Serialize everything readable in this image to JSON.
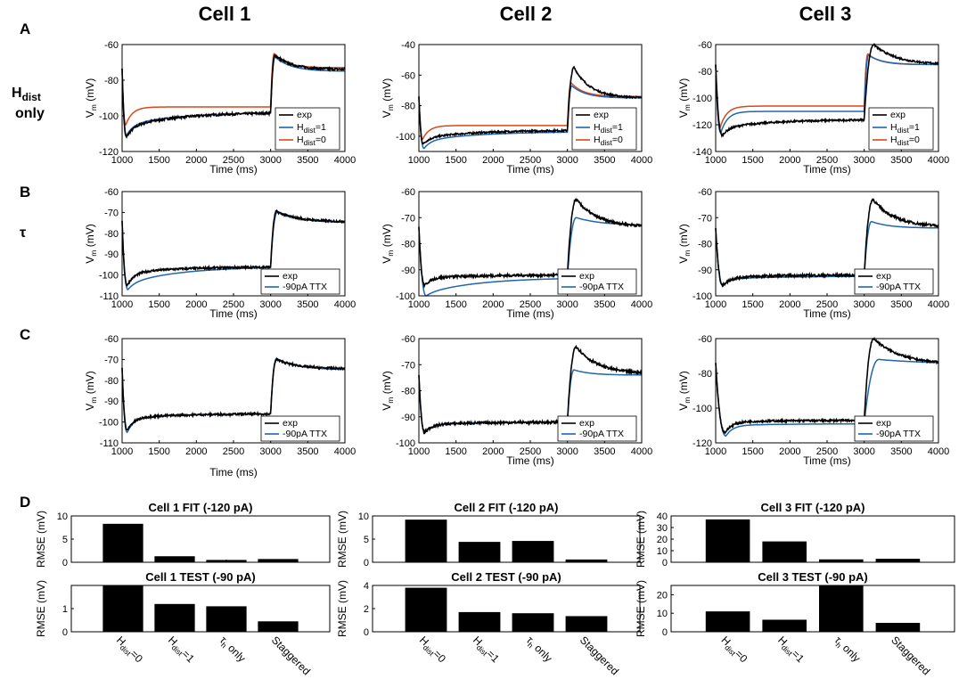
{
  "figure": {
    "column_titles": [
      "Cell 1",
      "Cell 2",
      "Cell 3"
    ],
    "panel_letters": [
      "A",
      "B",
      "C",
      "D"
    ],
    "row_labels": {
      "hdist_main": "H",
      "hdist_sub": "dist",
      "hdist_line2": "only",
      "tau": "τ"
    },
    "xlabel": "Time (ms)",
    "ylabel_main": "V",
    "ylabel_sub": "m",
    "ylabel_unit": " (mV)",
    "legend": {
      "exp": "exp",
      "h1_main": "H",
      "h1_sub": "dist",
      "h1_tail": "=1",
      "h0_main": "H",
      "h0_sub": "dist",
      "h0_tail": "=0",
      "ttx": "-90pA TTX"
    },
    "bar_ylabel": "RMSE (mV)",
    "bar_categories": [
      {
        "main": "H",
        "sub": "dist",
        "tail": "=0"
      },
      {
        "main": "H",
        "sub": "dist",
        "tail": "=1"
      },
      {
        "main": "τ",
        "sub": "h",
        "tail": " only"
      },
      {
        "main": "Staggered",
        "sub": "",
        "tail": ""
      }
    ],
    "colors": {
      "exp": "#000000",
      "model1": "#1f66b1",
      "model0": "#d9481a"
    }
  },
  "chart_data": [
    {
      "type": "line",
      "panel": "A",
      "cell": "Cell 1",
      "xlim": [
        1000,
        4000
      ],
      "ylim": [
        -120,
        -60
      ],
      "yticks": [
        -120,
        -100,
        -80,
        -60
      ],
      "xticks": [
        1000,
        1500,
        2000,
        2500,
        3000,
        3500,
        4000
      ],
      "xlabel": "Time (ms)",
      "ylabel": "Vm (mV)",
      "traces": [
        {
          "name": "exp",
          "v0": -73.5,
          "vmin": -112,
          "tmin": 1060,
          "vss": -98,
          "droop": 8,
          "noise": 0.8,
          "post": -74,
          "peak": -66,
          "peak_t": 3060,
          "rebound": 6
        },
        {
          "name": "Hdist=1",
          "v0": -73.5,
          "vmin": -111,
          "tmin": 1060,
          "vss": -98,
          "droop": 7,
          "noise": 0,
          "post": -75,
          "peak": -67,
          "peak_t": 3060,
          "rebound": 6
        },
        {
          "name": "Hdist=0",
          "v0": -73.5,
          "vmin": -105,
          "tmin": 1050,
          "vss": -95,
          "droop": 0,
          "noise": 0,
          "post": -73,
          "peak": -65,
          "peak_t": 3050,
          "rebound": 5
        }
      ]
    },
    {
      "type": "line",
      "panel": "A",
      "cell": "Cell 2",
      "xlim": [
        1000,
        4000
      ],
      "ylim": [
        -110,
        -40
      ],
      "yticks": [
        -100,
        -80,
        -60,
        -40
      ],
      "xticks": [
        1000,
        1500,
        2000,
        2500,
        3000,
        3500,
        4000
      ],
      "xlabel": "Time (ms)",
      "ylabel": "Vm (mV)",
      "traces": [
        {
          "name": "exp",
          "v0": -74,
          "vmin": -105,
          "tmin": 1060,
          "vss": -96,
          "droop": 5,
          "noise": 0.7,
          "post": -75,
          "peak": -55,
          "peak_t": 3090,
          "rebound": 4
        },
        {
          "name": "Hdist=1",
          "v0": -74,
          "vmin": -108,
          "tmin": 1070,
          "vss": -97,
          "droop": 6,
          "noise": 0,
          "post": -75,
          "peak": -67,
          "peak_t": 3060,
          "rebound": 5
        },
        {
          "name": "Hdist=0",
          "v0": -74,
          "vmin": -102,
          "tmin": 1050,
          "vss": -93,
          "droop": 0,
          "noise": 0,
          "post": -74,
          "peak": -65,
          "peak_t": 3050,
          "rebound": 5
        }
      ]
    },
    {
      "type": "line",
      "panel": "A",
      "cell": "Cell 3",
      "xlim": [
        1000,
        4000
      ],
      "ylim": [
        -140,
        -60
      ],
      "yticks": [
        -140,
        -120,
        -100,
        -80,
        -60
      ],
      "xticks": [
        1000,
        1500,
        2000,
        2500,
        3000,
        3500,
        4000
      ],
      "xlabel": "Time (ms)",
      "ylabel": "Vm (mV)",
      "traces": [
        {
          "name": "exp",
          "v0": -75,
          "vmin": -128,
          "tmin": 1090,
          "vss": -116,
          "droop": 6,
          "noise": 0.8,
          "post": -75,
          "peak": -60,
          "peak_t": 3130,
          "rebound": 4
        },
        {
          "name": "Hdist=1",
          "v0": -75,
          "vmin": -126,
          "tmin": 1070,
          "vss": -110,
          "droop": 0,
          "noise": 0,
          "post": -75,
          "peak": -68,
          "peak_t": 3060,
          "rebound": 5
        },
        {
          "name": "Hdist=0",
          "v0": -75,
          "vmin": -122,
          "tmin": 1060,
          "vss": -106,
          "droop": 0,
          "noise": 0,
          "post": -75,
          "peak": -67,
          "peak_t": 3050,
          "rebound": 5
        }
      ]
    },
    {
      "type": "line",
      "panel": "B",
      "cell": "Cell 1",
      "xlim": [
        1000,
        4000
      ],
      "ylim": [
        -110,
        -60
      ],
      "yticks": [
        -110,
        -100,
        -90,
        -80,
        -70,
        -60
      ],
      "xticks": [
        1000,
        1500,
        2000,
        2500,
        3000,
        3500,
        4000
      ],
      "xlabel": "Time (ms)",
      "ylabel": "Vm (mV)",
      "traces": [
        {
          "name": "exp",
          "v0": -74,
          "vmin": -105,
          "tmin": 1070,
          "vss": -96,
          "droop": 3,
          "noise": 0.6,
          "post": -74.5,
          "peak": -69.5,
          "peak_t": 3080,
          "rebound": 6
        },
        {
          "name": "-90pA TTX",
          "v0": -74,
          "vmin": -107,
          "tmin": 1080,
          "vss": -96,
          "droop": 8,
          "noise": 0,
          "post": -75,
          "peak": -70,
          "peak_t": 3090,
          "rebound": 6
        }
      ]
    },
    {
      "type": "line",
      "panel": "B",
      "cell": "Cell 2",
      "xlim": [
        1000,
        4000
      ],
      "ylim": [
        -100,
        -60
      ],
      "yticks": [
        -100,
        -90,
        -80,
        -70,
        -60
      ],
      "xticks": [
        1000,
        1500,
        2000,
        2500,
        3000,
        3500,
        4000
      ],
      "xlabel": "Time (ms)",
      "ylabel": "Vm (mV)",
      "traces": [
        {
          "name": "exp",
          "v0": -73.5,
          "vmin": -96,
          "tmin": 1080,
          "vss": -92,
          "droop": 1,
          "noise": 0.6,
          "post": -73.5,
          "peak": -63,
          "peak_t": 3120,
          "rebound": 4
        },
        {
          "name": "-90pA TTX",
          "v0": -73.5,
          "vmin": -100,
          "tmin": 1100,
          "vss": -93,
          "droop": 6,
          "noise": 0,
          "post": -73,
          "peak": -70,
          "peak_t": 3120,
          "rebound": 5
        }
      ]
    },
    {
      "type": "line",
      "panel": "B",
      "cell": "Cell 3",
      "xlim": [
        1000,
        4000
      ],
      "ylim": [
        -100,
        -60
      ],
      "yticks": [
        -100,
        -90,
        -80,
        -70,
        -60
      ],
      "xticks": [
        1000,
        1500,
        2000,
        2500,
        3000,
        3500,
        4000
      ],
      "xlabel": "Time (ms)",
      "ylabel": "Vm (mV)",
      "traces": [
        {
          "name": "exp",
          "v0": -74,
          "vmin": -96,
          "tmin": 1100,
          "vss": -92,
          "droop": 1,
          "noise": 0.6,
          "post": -73.5,
          "peak": -63,
          "peak_t": 3120,
          "rebound": 4
        },
        {
          "name": "-90pA TTX",
          "v0": -74,
          "vmin": -96,
          "tmin": 1100,
          "vss": -92.5,
          "droop": 1,
          "noise": 0,
          "post": -74,
          "peak": -71.5,
          "peak_t": 3100,
          "rebound": 4
        }
      ]
    },
    {
      "type": "line",
      "panel": "C",
      "cell": "Cell 1",
      "xlim": [
        1000,
        4000
      ],
      "ylim": [
        -110,
        -60
      ],
      "yticks": [
        -110,
        -100,
        -90,
        -80,
        -70,
        -60
      ],
      "xticks": [
        1000,
        1500,
        2000,
        2500,
        3000,
        3500,
        4000
      ],
      "xlabel": "Time (ms)",
      "ylabel": "Vm (mV)",
      "traces": [
        {
          "name": "exp",
          "v0": -74,
          "vmin": -104,
          "tmin": 1070,
          "vss": -96,
          "droop": 2,
          "noise": 0.6,
          "post": -74.5,
          "peak": -70,
          "peak_t": 3080,
          "rebound": 6
        },
        {
          "name": "-90pA TTX",
          "v0": -74,
          "vmin": -105,
          "tmin": 1070,
          "vss": -96,
          "droop": 2,
          "noise": 0,
          "post": -75,
          "peak": -69.5,
          "peak_t": 3080,
          "rebound": 6
        }
      ]
    },
    {
      "type": "line",
      "panel": "C",
      "cell": "Cell 2",
      "xlim": [
        1000,
        4000
      ],
      "ylim": [
        -100,
        -60
      ],
      "yticks": [
        -100,
        -90,
        -80,
        -70,
        -60
      ],
      "xticks": [
        1000,
        1500,
        2000,
        2500,
        3000,
        3500,
        4000
      ],
      "xlabel": "Time (ms)",
      "ylabel": "Vm (mV)",
      "traces": [
        {
          "name": "exp",
          "v0": -74,
          "vmin": -96,
          "tmin": 1080,
          "vss": -92,
          "droop": 1,
          "noise": 0.6,
          "post": -73.5,
          "peak": -63,
          "peak_t": 3120,
          "rebound": 4
        },
        {
          "name": "-90pA TTX",
          "v0": -74,
          "vmin": -96,
          "tmin": 1080,
          "vss": -92,
          "droop": 1,
          "noise": 0,
          "post": -74,
          "peak": -72,
          "peak_t": 3090,
          "rebound": 4
        }
      ]
    },
    {
      "type": "line",
      "panel": "C",
      "cell": "Cell 3",
      "xlim": [
        1000,
        4000
      ],
      "ylim": [
        -120,
        -60
      ],
      "yticks": [
        -120,
        -100,
        -80,
        -60
      ],
      "xticks": [
        1000,
        1500,
        2000,
        2500,
        3000,
        3500,
        4000
      ],
      "xlabel": "Time (ms)",
      "ylabel": "Vm (mV)",
      "traces": [
        {
          "name": "exp",
          "v0": -74,
          "vmin": -114,
          "tmin": 1130,
          "vss": -107,
          "droop": 1,
          "noise": 0.7,
          "post": -75,
          "peak": -60,
          "peak_t": 3130,
          "rebound": 5
        },
        {
          "name": "-90pA TTX",
          "v0": -74,
          "vmin": -116,
          "tmin": 1140,
          "vss": -109,
          "droop": 1,
          "noise": 0,
          "post": -74.5,
          "peak": -72,
          "peak_t": 3200,
          "rebound": 6
        }
      ]
    },
    {
      "type": "bar",
      "panel": "D",
      "cell": "Cell 1",
      "title": "Cell 1 FIT (-120 pA)",
      "ylabel": "RMSE (mV)",
      "ylim": [
        0,
        10
      ],
      "yticks": [
        0,
        5,
        10
      ],
      "values": [
        8.3,
        1.3,
        0.5,
        0.7
      ]
    },
    {
      "type": "bar",
      "panel": "D",
      "cell": "Cell 2",
      "title": "Cell 2 FIT (-120 pA)",
      "ylabel": "RMSE (mV)",
      "ylim": [
        0,
        10
      ],
      "yticks": [
        0,
        5,
        10
      ],
      "values": [
        9.2,
        4.4,
        4.6,
        0.6
      ]
    },
    {
      "type": "bar",
      "panel": "D",
      "cell": "Cell 3",
      "title": "Cell 3 FIT (-120 pA)",
      "ylabel": "RMSE (mV)",
      "ylim": [
        0,
        40
      ],
      "yticks": [
        0,
        10,
        20,
        30,
        40
      ],
      "values": [
        37,
        18,
        2.5,
        3
      ]
    },
    {
      "type": "bar",
      "panel": "D",
      "cell": "Cell 1",
      "title": "Cell 1 TEST (-90 pA)",
      "ylabel": "RMSE (mV)",
      "ylim": [
        0,
        2
      ],
      "yticks": [
        0,
        1
      ],
      "values": [
        2.0,
        1.2,
        1.1,
        0.45
      ]
    },
    {
      "type": "bar",
      "panel": "D",
      "cell": "Cell 2",
      "title": "Cell 2 TEST (-90 pA)",
      "ylabel": "RMSE (mV)",
      "ylim": [
        0,
        4
      ],
      "yticks": [
        0,
        2,
        4
      ],
      "values": [
        3.8,
        1.7,
        1.6,
        1.35
      ]
    },
    {
      "type": "bar",
      "panel": "D",
      "cell": "Cell 3",
      "title": "Cell 3 TEST (-90 pA)",
      "ylabel": "RMSE (mV)",
      "ylim": [
        0,
        25
      ],
      "yticks": [
        0,
        10,
        20
      ],
      "values": [
        11,
        6.5,
        25,
        4.8
      ]
    }
  ]
}
